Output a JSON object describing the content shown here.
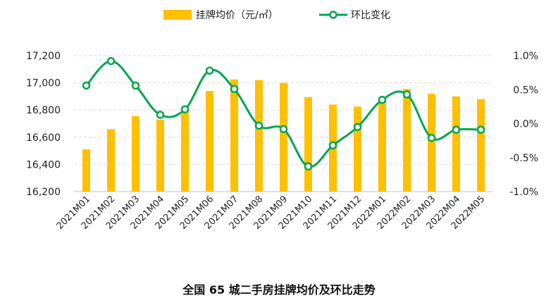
{
  "chart_data": {
    "type": "bar+line",
    "title": "全国 65 城二手房挂牌均价及环比走势",
    "categories": [
      "2021M01",
      "2021M02",
      "2021M03",
      "2021M04",
      "2021M05",
      "2021M06",
      "2021M07",
      "2021M08",
      "2021M09",
      "2021M10",
      "2021M11",
      "2021M12",
      "2022M01",
      "2022M02",
      "2022M03",
      "2022M04",
      "2022M05"
    ],
    "series": [
      {
        "name": "挂牌均价（元/㎡）",
        "type": "bar",
        "axis": "left",
        "color": "#FFC000",
        "values": [
          16510,
          16660,
          16755,
          16730,
          16800,
          16940,
          17025,
          17020,
          17000,
          16895,
          16840,
          16825,
          16880,
          16955,
          16920,
          16900,
          16880
        ]
      },
      {
        "name": "环比变化",
        "type": "line",
        "axis": "right",
        "color": "#00A651",
        "values": [
          0.56,
          0.92,
          0.56,
          0.13,
          0.21,
          0.78,
          0.51,
          -0.03,
          -0.08,
          -0.63,
          -0.32,
          -0.05,
          0.35,
          0.43,
          -0.21,
          -0.09,
          -0.09
        ]
      }
    ],
    "y_left": {
      "min": 16200,
      "max": 17200,
      "ticks": [
        "16,200",
        "16,400",
        "16,600",
        "16,800",
        "17,000",
        "17,200"
      ],
      "tick_values": [
        16200,
        16400,
        16600,
        16800,
        17000,
        17200
      ]
    },
    "y_right": {
      "min": -1.0,
      "max": 1.0,
      "ticks": [
        "-1.0%",
        "-0.5%",
        "0.0%",
        "0.5%",
        "1.0%"
      ],
      "tick_values": [
        -1.0,
        -0.5,
        0.0,
        0.5,
        1.0
      ]
    },
    "grid": true,
    "legend_position": "top-center"
  }
}
